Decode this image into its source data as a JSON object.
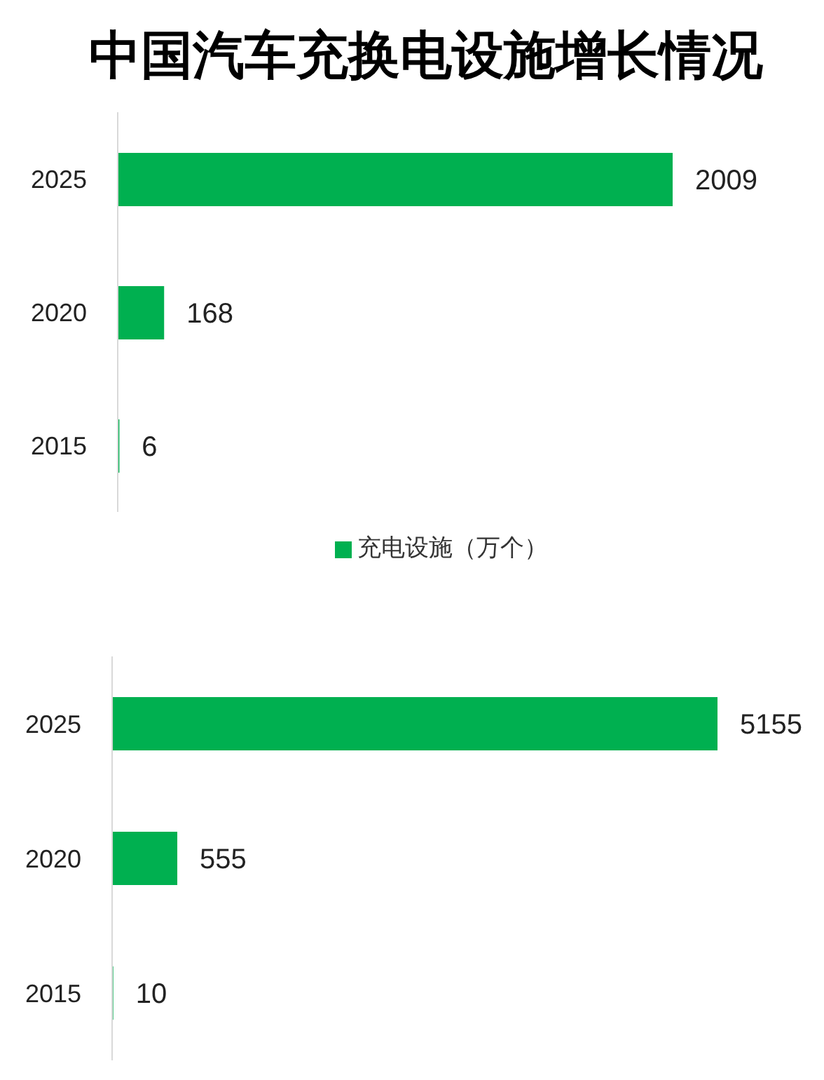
{
  "chart_data": [
    {
      "type": "bar",
      "title": "中国汽车充换电设施增长情况",
      "orientation": "horizontal",
      "categories": [
        "2025",
        "2020",
        "2015"
      ],
      "series": [
        {
          "name": "充电设施（万个）",
          "color": "#00b050",
          "values": [
            2009,
            168,
            6
          ]
        }
      ],
      "data_labels": true,
      "legend": "bottom"
    },
    {
      "type": "bar",
      "orientation": "horizontal",
      "categories": [
        "2025",
        "2020",
        "2015"
      ],
      "series": [
        {
          "color": "#00b050",
          "values": [
            5155,
            555,
            10
          ]
        }
      ],
      "data_labels": true
    }
  ]
}
